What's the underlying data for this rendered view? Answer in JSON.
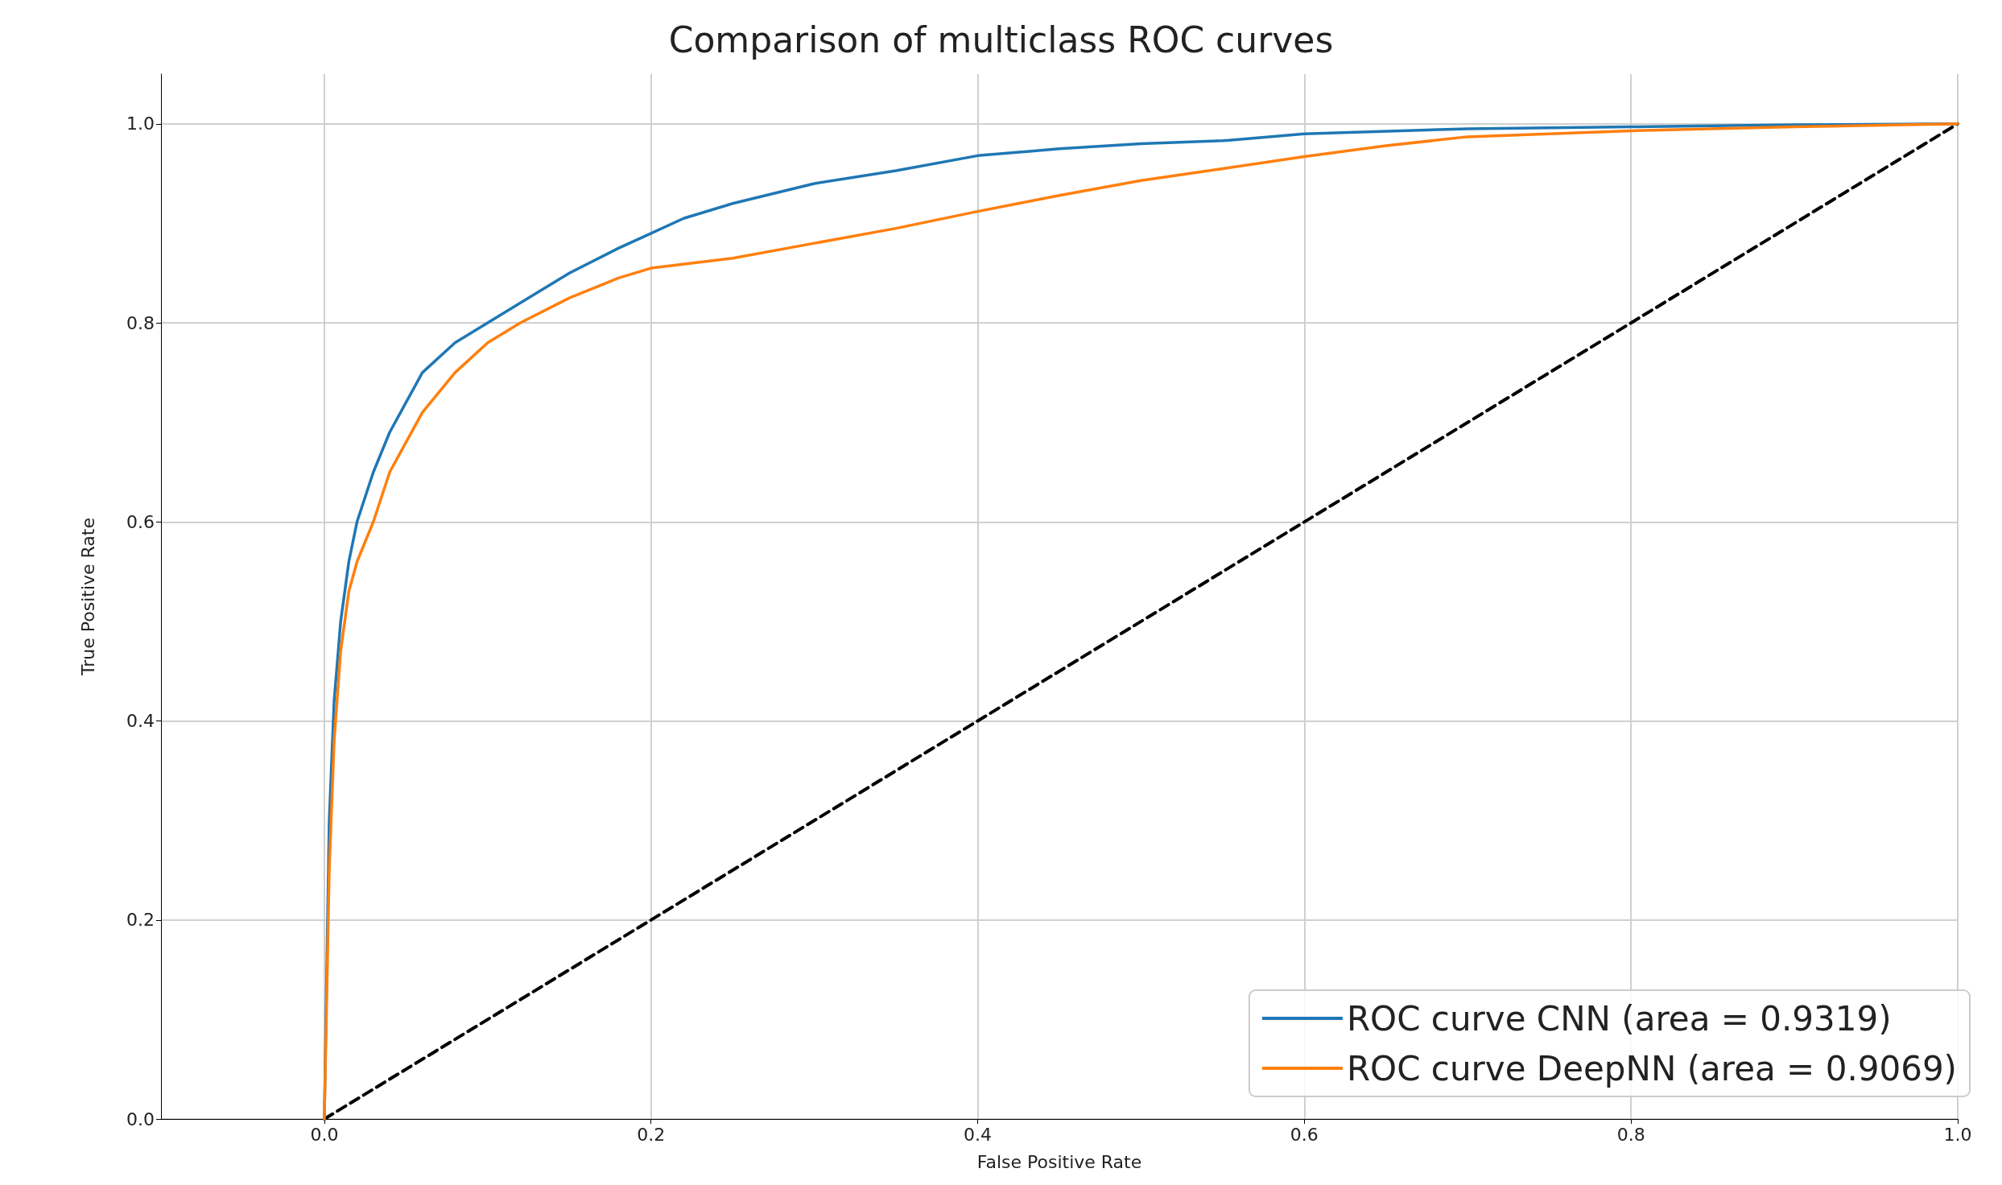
{
  "chart_data": {
    "type": "line",
    "title": "Comparison of multiclass ROC curves",
    "xlabel": "False Positive Rate",
    "ylabel": "True Positive Rate",
    "xlim": [
      -0.1,
      1.0
    ],
    "ylim": [
      0,
      1.05
    ],
    "xticks": [
      {
        "value": 0,
        "label": "0.0"
      },
      0.2,
      0.4,
      0.6,
      0.8,
      {
        "value": 1,
        "label": "1.0"
      }
    ],
    "yticks": [
      {
        "value": 0,
        "label": "0.0"
      },
      0.2,
      0.4,
      0.6,
      0.8,
      {
        "value": 1,
        "label": "1.0"
      }
    ],
    "grid": true,
    "legend": "bottom right",
    "marker": "none",
    "series": [
      {
        "name": "ROC curve CNN (area = 0.9319)",
        "color": "#1f77b4",
        "line_style": "solid",
        "x": [
          0,
          0.003,
          0.006,
          0.01,
          0.015,
          0.02,
          0.03,
          0.04,
          0.05,
          0.06,
          0.08,
          0.1,
          0.12,
          0.15,
          0.18,
          0.2,
          0.22,
          0.25,
          0.3,
          0.35,
          0.4,
          0.45,
          0.5,
          0.55,
          0.6,
          0.7,
          0.8,
          0.9,
          1
        ],
        "values": [
          0,
          0.3,
          0.42,
          0.5,
          0.56,
          0.6,
          0.65,
          0.69,
          0.72,
          0.75,
          0.78,
          0.8,
          0.82,
          0.85,
          0.875,
          0.89,
          0.905,
          0.92,
          0.94,
          0.953,
          0.968,
          0.975,
          0.98,
          0.983,
          0.99,
          0.995,
          0.997,
          0.999,
          1
        ]
      },
      {
        "name": "ROC curve DeepNN (area = 0.9069)",
        "color": "#ff7f0e",
        "line_style": "solid",
        "x": [
          0,
          0.003,
          0.006,
          0.01,
          0.015,
          0.02,
          0.03,
          0.04,
          0.05,
          0.06,
          0.08,
          0.1,
          0.12,
          0.15,
          0.18,
          0.2,
          0.25,
          0.3,
          0.35,
          0.4,
          0.45,
          0.5,
          0.55,
          0.6,
          0.65,
          0.7,
          0.8,
          0.9,
          1
        ],
        "values": [
          0,
          0.25,
          0.38,
          0.47,
          0.53,
          0.56,
          0.6,
          0.65,
          0.68,
          0.71,
          0.75,
          0.78,
          0.8,
          0.825,
          0.845,
          0.855,
          0.865,
          0.88,
          0.895,
          0.912,
          0.928,
          0.943,
          0.955,
          0.967,
          0.978,
          0.987,
          0.993,
          0.997,
          1
        ]
      },
      {
        "color": "#000000",
        "line_style": "dashed",
        "x": [
          0,
          1
        ],
        "values": [
          0,
          1
        ]
      }
    ]
  }
}
